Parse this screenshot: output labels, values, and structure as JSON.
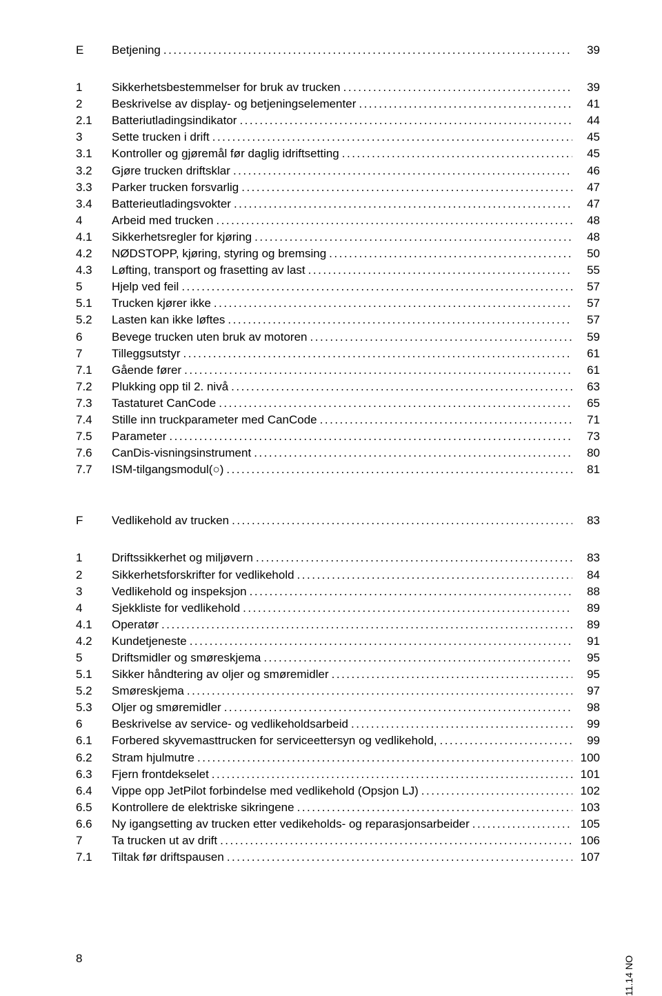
{
  "sections": [
    {
      "letter": "E",
      "title": "Betjening",
      "page": "39",
      "entries": [
        {
          "num": "1",
          "title": "Sikkerhetsbestemmelser for bruk av trucken",
          "page": "39"
        },
        {
          "num": "2",
          "title": "Beskrivelse av display- og betjeningselementer",
          "page": "41"
        },
        {
          "num": "2.1",
          "title": "Batteriutladingsindikator",
          "page": "44"
        },
        {
          "num": "3",
          "title": "Sette trucken i drift",
          "page": "45"
        },
        {
          "num": "3.1",
          "title": "Kontroller og gjøremål før daglig idriftsetting",
          "page": "45"
        },
        {
          "num": "3.2",
          "title": "Gjøre trucken driftsklar",
          "page": "46"
        },
        {
          "num": "3.3",
          "title": "Parker trucken forsvarlig",
          "page": "47"
        },
        {
          "num": "3.4",
          "title": "Batterieutladingsvokter",
          "page": "47"
        },
        {
          "num": "4",
          "title": "Arbeid med trucken",
          "page": "48"
        },
        {
          "num": "4.1",
          "title": "Sikkerhetsregler for kjøring",
          "page": "48"
        },
        {
          "num": "4.2",
          "title": "NØDSTOPP, kjøring, styring og bremsing",
          "page": "50"
        },
        {
          "num": "4.3",
          "title": "Løfting, transport og frasetting av last",
          "page": "55"
        },
        {
          "num": "5",
          "title": "Hjelp ved feil",
          "page": "57"
        },
        {
          "num": "5.1",
          "title": "Trucken kjører ikke",
          "page": "57"
        },
        {
          "num": "5.2",
          "title": "Lasten kan ikke løftes",
          "page": "57"
        },
        {
          "num": "6",
          "title": "Bevege trucken uten bruk av motoren",
          "page": "59"
        },
        {
          "num": "7",
          "title": "Tilleggsutstyr",
          "page": "61"
        },
        {
          "num": "7.1",
          "title": "Gående fører",
          "page": "61"
        },
        {
          "num": "7.2",
          "title": "Plukking opp til 2. nivå",
          "page": "63"
        },
        {
          "num": "7.3",
          "title": "Tastaturet CanCode",
          "page": "65"
        },
        {
          "num": "7.4",
          "title": "Stille inn truckparameter med CanCode",
          "page": "71"
        },
        {
          "num": "7.5",
          "title": "Parameter",
          "page": "73"
        },
        {
          "num": "7.6",
          "title": "CanDis-visningsinstrument",
          "page": "80"
        },
        {
          "num": "7.7",
          "title": "ISM-tilgangsmodul(○)",
          "page": "81"
        }
      ]
    },
    {
      "letter": "F",
      "title": "Vedlikehold av trucken",
      "page": "83",
      "entries": [
        {
          "num": "1",
          "title": "Driftssikkerhet og miljøvern",
          "page": "83"
        },
        {
          "num": "2",
          "title": "Sikkerhetsforskrifter for vedlikehold",
          "page": "84"
        },
        {
          "num": "3",
          "title": "Vedlikehold og inspeksjon",
          "page": "88"
        },
        {
          "num": "4",
          "title": "Sjekkliste for vedlikehold",
          "page": "89"
        },
        {
          "num": "4.1",
          "title": "Operatør",
          "page": "89"
        },
        {
          "num": "4.2",
          "title": "Kundetjeneste",
          "page": "91"
        },
        {
          "num": "5",
          "title": "Driftsmidler og smøreskjema",
          "page": "95"
        },
        {
          "num": "5.1",
          "title": "Sikker håndtering av oljer og smøremidler",
          "page": "95"
        },
        {
          "num": "5.2",
          "title": "Smøreskjema",
          "page": "97"
        },
        {
          "num": "5.3",
          "title": "Oljer og smøremidler",
          "page": "98"
        },
        {
          "num": "6",
          "title": "Beskrivelse av service- og vedlikeholdsarbeid",
          "page": "99"
        },
        {
          "num": "6.1",
          "title": "Forbered skyvemasttrucken for serviceettersyn og vedlikehold,",
          "page": "99"
        },
        {
          "num": "6.2",
          "title": "Stram hjulmutre",
          "page": "100"
        },
        {
          "num": "6.3",
          "title": "Fjern frontdekselet",
          "page": "101"
        },
        {
          "num": "6.4",
          "title": "Vippe opp JetPilot forbindelse med vedlikehold (Opsjon LJ)",
          "page": "102"
        },
        {
          "num": "6.5",
          "title": "Kontrollere de elektriske sikringene",
          "page": "103"
        },
        {
          "num": "6.6",
          "title": "Ny igangsetting av trucken etter vedikeholds- og reparasjonsarbeider",
          "page": "105"
        },
        {
          "num": "7",
          "title": "Ta trucken ut av drift",
          "page": "106"
        },
        {
          "num": "7.1",
          "title": "Tiltak før driftspausen",
          "page": "107"
        }
      ]
    }
  ],
  "footer_page": "8",
  "side_label": "11.14 NO"
}
